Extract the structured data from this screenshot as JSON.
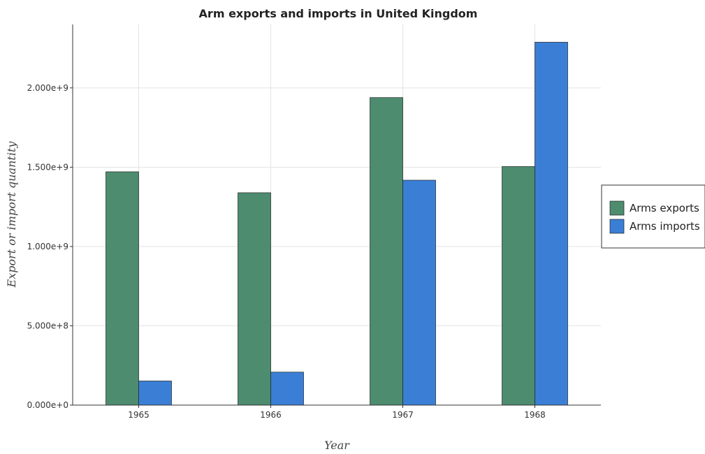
{
  "chart_data": {
    "type": "bar",
    "title": "Arm exports and imports in United Kingdom",
    "xlabel": "Year",
    "ylabel": "Export or import quantity",
    "categories": [
      "1965",
      "1966",
      "1967",
      "1968"
    ],
    "series": [
      {
        "name": "Arms exports",
        "color": "#4d8c6f",
        "values": [
          1471000000,
          1339000000,
          1939000000,
          1504000000
        ]
      },
      {
        "name": "Arms imports",
        "color": "#3a7fd5",
        "values": [
          152000000,
          208000000,
          1418000000,
          2288000000
        ]
      }
    ],
    "yticks": [
      0,
      500000000,
      1000000000,
      1500000000,
      2000000000
    ],
    "ytick_labels": [
      "0.000e+0",
      "5.000e+8",
      "1.000e+9",
      "1.500e+9",
      "2.000e+9"
    ],
    "ylim": [
      0,
      2400000000
    ],
    "grid": true,
    "legend_position": "right"
  }
}
